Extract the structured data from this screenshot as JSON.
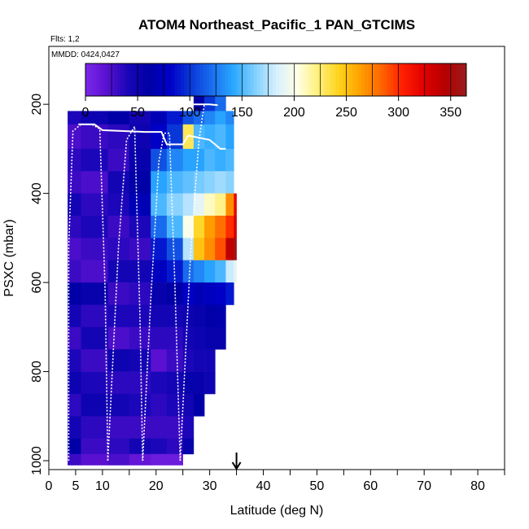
{
  "chart_data": {
    "type": "heatmap",
    "title": "ATOM4 Northeast_Pacific_1 PAN_GTCIMS",
    "subtitle": "Flts: 1,2",
    "inset_label": "MMDD: 0424,0427",
    "xlabel": "Latitude (deg N)",
    "ylabel": "PSXC (mbar)",
    "xlim": [
      0,
      85
    ],
    "ylim": [
      1020,
      70
    ],
    "x_ticks": [
      0,
      5,
      10,
      20,
      30,
      40,
      50,
      60,
      70,
      80
    ],
    "x_minor_ticks": [
      15,
      25,
      35,
      45,
      55,
      65,
      75,
      85
    ],
    "y_ticks": [
      200,
      400,
      600,
      800,
      1000
    ],
    "colorbar": {
      "range": [
        0,
        365
      ],
      "ticks": [
        0,
        50,
        100,
        150,
        200,
        250,
        300,
        350
      ],
      "colors": [
        "#7b28e8",
        "#5a10d0",
        "#1a06b8",
        "#0000a6",
        "#0000c8",
        "#0a3ad8",
        "#1a6ff0",
        "#2aa8ff",
        "#7fcfff",
        "#d6efff",
        "#ffffe6",
        "#fff07a",
        "#ffd21a",
        "#ffa000",
        "#ff6400",
        "#ff1e00",
        "#e00000",
        "#b50000",
        "#9a1c1c"
      ]
    },
    "marker": {
      "x": 35,
      "symbol": "down-arrow"
    },
    "grid": false,
    "columns": [
      {
        "x0": 3.5,
        "x1": 6,
        "rows": [
          [
            215,
            245,
            40
          ],
          [
            245,
            300,
            25
          ],
          [
            300,
            350,
            35
          ],
          [
            350,
            400,
            30
          ],
          [
            400,
            450,
            45
          ],
          [
            450,
            500,
            35
          ],
          [
            500,
            550,
            25
          ],
          [
            550,
            600,
            30
          ],
          [
            600,
            650,
            60
          ],
          [
            650,
            700,
            45
          ],
          [
            700,
            750,
            30
          ],
          [
            750,
            800,
            40
          ],
          [
            800,
            850,
            50
          ],
          [
            850,
            900,
            35
          ],
          [
            900,
            950,
            45
          ],
          [
            950,
            985,
            60
          ],
          [
            985,
            1010,
            30
          ]
        ]
      },
      {
        "x0": 6,
        "x1": 11,
        "rows": [
          [
            215,
            245,
            50
          ],
          [
            245,
            300,
            30
          ],
          [
            300,
            350,
            40
          ],
          [
            350,
            400,
            25
          ],
          [
            400,
            450,
            35
          ],
          [
            450,
            500,
            40
          ],
          [
            500,
            550,
            30
          ],
          [
            550,
            600,
            25
          ],
          [
            600,
            650,
            55
          ],
          [
            650,
            700,
            35
          ],
          [
            700,
            750,
            45
          ],
          [
            750,
            800,
            30
          ],
          [
            800,
            850,
            40
          ],
          [
            850,
            900,
            50
          ],
          [
            900,
            950,
            35
          ],
          [
            950,
            985,
            30
          ],
          [
            985,
            1010,
            20
          ]
        ]
      },
      {
        "x0": 11,
        "x1": 15,
        "rows": [
          [
            215,
            245,
            60
          ],
          [
            245,
            300,
            35
          ],
          [
            300,
            350,
            30
          ],
          [
            350,
            400,
            45
          ],
          [
            400,
            450,
            40
          ],
          [
            450,
            500,
            30
          ],
          [
            500,
            550,
            35
          ],
          [
            550,
            600,
            45
          ],
          [
            600,
            650,
            30
          ],
          [
            650,
            700,
            40
          ],
          [
            700,
            750,
            25
          ],
          [
            750,
            800,
            50
          ],
          [
            800,
            850,
            35
          ],
          [
            850,
            900,
            45
          ],
          [
            900,
            950,
            30
          ],
          [
            950,
            985,
            35
          ],
          [
            985,
            1010,
            25
          ]
        ]
      },
      {
        "x0": 15,
        "x1": 19,
        "rows": [
          [
            215,
            245,
            45
          ],
          [
            245,
            300,
            50
          ],
          [
            300,
            350,
            55
          ],
          [
            350,
            400,
            60
          ],
          [
            400,
            450,
            70
          ],
          [
            450,
            500,
            40
          ],
          [
            500,
            550,
            30
          ],
          [
            550,
            600,
            45
          ],
          [
            600,
            650,
            35
          ],
          [
            650,
            700,
            40
          ],
          [
            700,
            750,
            30
          ],
          [
            750,
            800,
            45
          ],
          [
            800,
            850,
            35
          ],
          [
            850,
            900,
            40
          ],
          [
            900,
            950,
            30
          ],
          [
            950,
            985,
            45
          ],
          [
            985,
            1010,
            15
          ]
        ]
      },
      {
        "x0": 19,
        "x1": 22,
        "rows": [
          [
            215,
            245,
            70
          ],
          [
            245,
            300,
            80
          ],
          [
            300,
            350,
            110
          ],
          [
            350,
            400,
            140
          ],
          [
            400,
            450,
            150
          ],
          [
            450,
            500,
            120
          ],
          [
            500,
            550,
            90
          ],
          [
            550,
            600,
            75
          ],
          [
            600,
            650,
            55
          ],
          [
            650,
            700,
            45
          ],
          [
            700,
            750,
            35
          ],
          [
            750,
            800,
            20
          ],
          [
            800,
            850,
            40
          ],
          [
            850,
            900,
            35
          ],
          [
            900,
            950,
            30
          ],
          [
            950,
            985,
            40
          ],
          [
            985,
            1010,
            10
          ]
        ]
      },
      {
        "x0": 22,
        "x1": 25,
        "rows": [
          [
            215,
            245,
            90
          ],
          [
            245,
            300,
            100
          ],
          [
            300,
            350,
            130
          ],
          [
            350,
            400,
            150
          ],
          [
            400,
            450,
            165
          ],
          [
            450,
            500,
            150
          ],
          [
            500,
            550,
            110
          ],
          [
            550,
            600,
            90
          ],
          [
            600,
            650,
            60
          ],
          [
            650,
            700,
            45
          ],
          [
            700,
            750,
            35
          ],
          [
            750,
            800,
            30
          ],
          [
            800,
            850,
            45
          ],
          [
            850,
            900,
            40
          ],
          [
            900,
            950,
            30
          ],
          [
            950,
            985,
            35
          ],
          [
            985,
            1010,
            10
          ]
        ]
      },
      {
        "x0": 25,
        "x1": 27,
        "rows": [
          [
            215,
            245,
            110
          ],
          [
            245,
            300,
            230
          ],
          [
            300,
            350,
            140
          ],
          [
            350,
            400,
            155
          ],
          [
            400,
            450,
            175
          ],
          [
            450,
            500,
            200
          ],
          [
            500,
            550,
            175
          ],
          [
            550,
            600,
            120
          ],
          [
            600,
            650,
            80
          ],
          [
            650,
            700,
            50
          ],
          [
            700,
            750,
            45
          ],
          [
            750,
            800,
            40
          ],
          [
            800,
            850,
            55
          ],
          [
            850,
            900,
            45
          ],
          [
            900,
            950,
            40
          ],
          [
            950,
            985,
            55
          ]
        ]
      },
      {
        "x0": 27,
        "x1": 29,
        "rows": [
          [
            165,
            215,
            60
          ],
          [
            215,
            245,
            120
          ],
          [
            245,
            300,
            150
          ],
          [
            300,
            350,
            140
          ],
          [
            350,
            400,
            160
          ],
          [
            400,
            450,
            190
          ],
          [
            450,
            500,
            240
          ],
          [
            500,
            550,
            250
          ],
          [
            550,
            600,
            130
          ],
          [
            600,
            650,
            70
          ],
          [
            650,
            700,
            55
          ],
          [
            700,
            750,
            50
          ],
          [
            750,
            800,
            45
          ],
          [
            800,
            850,
            55
          ],
          [
            850,
            900,
            60
          ]
        ]
      },
      {
        "x0": 29,
        "x1": 31,
        "rows": [
          [
            165,
            215,
            100
          ],
          [
            215,
            245,
            130
          ],
          [
            245,
            300,
            145
          ],
          [
            300,
            350,
            150
          ],
          [
            350,
            400,
            165
          ],
          [
            400,
            450,
            210
          ],
          [
            450,
            500,
            265
          ],
          [
            500,
            550,
            270
          ],
          [
            550,
            600,
            140
          ],
          [
            600,
            650,
            75
          ],
          [
            650,
            700,
            60
          ],
          [
            700,
            750,
            55
          ],
          [
            750,
            800,
            45
          ],
          [
            800,
            850,
            50
          ]
        ]
      },
      {
        "x0": 31,
        "x1": 33,
        "rows": [
          [
            165,
            215,
            120
          ],
          [
            215,
            245,
            140
          ],
          [
            245,
            300,
            150
          ],
          [
            300,
            350,
            145
          ],
          [
            350,
            400,
            170
          ],
          [
            400,
            450,
            220
          ],
          [
            450,
            500,
            280
          ],
          [
            500,
            550,
            290
          ],
          [
            550,
            600,
            150
          ],
          [
            600,
            650,
            80
          ],
          [
            650,
            700,
            65
          ],
          [
            700,
            750,
            55
          ]
        ]
      },
      {
        "x0": 33,
        "x1": 34.5,
        "rows": [
          [
            215,
            245,
            130
          ],
          [
            245,
            300,
            140
          ],
          [
            300,
            350,
            150
          ],
          [
            350,
            400,
            165
          ],
          [
            400,
            450,
            270
          ],
          [
            450,
            500,
            300
          ],
          [
            500,
            550,
            340
          ],
          [
            550,
            600,
            180
          ],
          [
            600,
            650,
            90
          ]
        ]
      },
      {
        "x0": 34.5,
        "x1": 35,
        "rows": [
          [
            400,
            450,
            320
          ],
          [
            450,
            500,
            330
          ],
          [
            500,
            550,
            360
          ],
          [
            550,
            600,
            190
          ]
        ]
      }
    ]
  }
}
